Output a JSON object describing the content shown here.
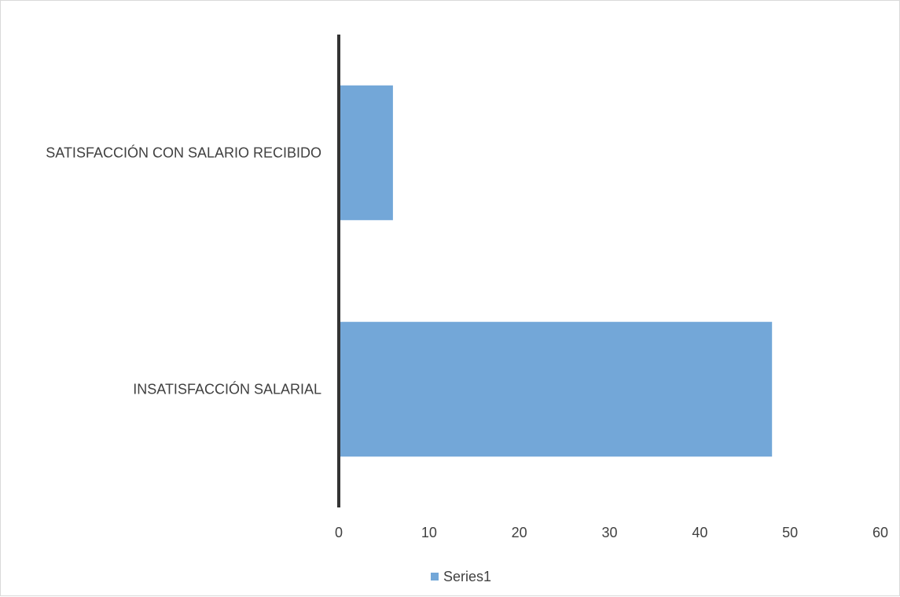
{
  "chart_data": {
    "type": "bar",
    "orientation": "horizontal",
    "categories": [
      "SATISFACCIÓN CON SALARIO RECIBIDO",
      "INSATISFACCIÓN SALARIAL"
    ],
    "series": [
      {
        "name": "Series1",
        "values": [
          6,
          48
        ]
      }
    ],
    "title": "",
    "xlabel": "",
    "ylabel": "",
    "xlim": [
      0,
      60
    ],
    "x_ticks": [
      0,
      10,
      20,
      30,
      40,
      50,
      60
    ],
    "grid": false,
    "legend": "bottom",
    "colors": {
      "bar": "#73a7d8",
      "axis": "#333333",
      "text": "#404040",
      "border": "#d9d9d9"
    }
  }
}
